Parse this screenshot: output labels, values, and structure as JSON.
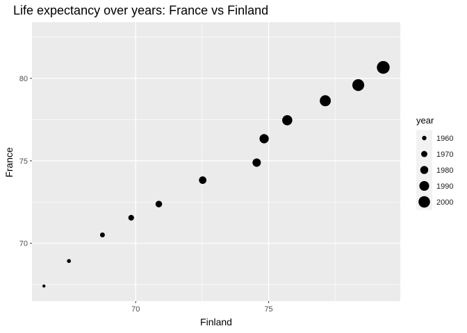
{
  "chart_data": {
    "type": "scatter",
    "title": "Life expectancy over years: France vs Finland",
    "xlabel": "Finland",
    "ylabel": "France",
    "xlim": [
      66.1,
      79.95
    ],
    "ylim": [
      66.5,
      83.4
    ],
    "x_ticks": [
      70,
      75
    ],
    "x_minor_ticks": [
      72.5,
      77.5
    ],
    "y_ticks": [
      70,
      75,
      80
    ],
    "y_minor_ticks": [
      67.5,
      72.5,
      77.5,
      82.5
    ],
    "grid": true,
    "background": "#ebebeb",
    "point_color": "#000000",
    "size_variable": "year",
    "points": [
      {
        "year": 1952,
        "x": 66.55,
        "y": 67.41
      },
      {
        "year": 1957,
        "x": 67.49,
        "y": 68.93
      },
      {
        "year": 1962,
        "x": 68.75,
        "y": 70.51
      },
      {
        "year": 1967,
        "x": 69.83,
        "y": 71.55
      },
      {
        "year": 1972,
        "x": 70.87,
        "y": 72.38
      },
      {
        "year": 1977,
        "x": 72.52,
        "y": 73.83
      },
      {
        "year": 1982,
        "x": 74.55,
        "y": 74.89
      },
      {
        "year": 1987,
        "x": 74.83,
        "y": 76.34
      },
      {
        "year": 1992,
        "x": 75.7,
        "y": 77.46
      },
      {
        "year": 1997,
        "x": 77.13,
        "y": 78.64
      },
      {
        "year": 2002,
        "x": 78.37,
        "y": 79.59
      },
      {
        "year": 2007,
        "x": 79.31,
        "y": 80.66
      }
    ],
    "legend": {
      "title": "year",
      "position": "right",
      "entries": [
        {
          "label": "1960",
          "year": 1960
        },
        {
          "label": "1970",
          "year": 1970
        },
        {
          "label": "1980",
          "year": 1980
        },
        {
          "label": "1990",
          "year": 1990
        },
        {
          "label": "2000",
          "year": 2000
        }
      ]
    }
  }
}
